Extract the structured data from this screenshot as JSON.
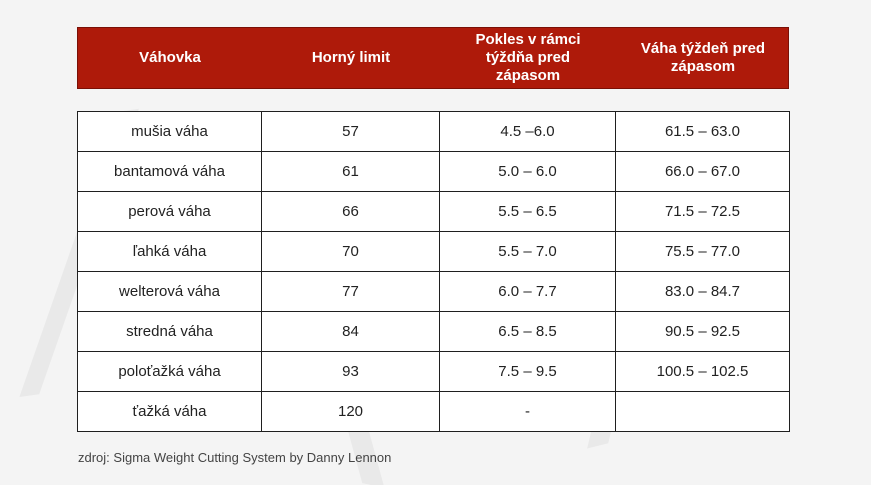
{
  "table": {
    "headers": [
      "Váhovka",
      "Horný limit",
      "Pokles v rámci\ntýždňa pred\nzápasom",
      "Váha týždeň pred\nzápasom"
    ],
    "rows": [
      [
        "mušia váha",
        "57",
        "4.5 –6.0",
        "61.5 – 63.0"
      ],
      [
        "bantamová váha",
        "61",
        "5.0 – 6.0",
        "66.0 – 67.0"
      ],
      [
        "perová váha",
        "66",
        "5.5 – 6.5",
        "71.5 – 72.5"
      ],
      [
        "ľahká váha",
        "70",
        "5.5 – 7.0",
        "75.5 – 77.0"
      ],
      [
        "welterová váha",
        "77",
        "6.0 – 7.7",
        "83.0 – 84.7"
      ],
      [
        "stredná váha",
        "84",
        "6.5 – 8.5",
        "90.5 – 92.5"
      ],
      [
        "poloťažká váha",
        "93",
        "7.5 – 9.5",
        "100.5 – 102.5"
      ],
      [
        "ťažká váha",
        "120",
        "-",
        ""
      ]
    ]
  },
  "source": "zdroj: Sigma Weight Cutting System by Danny Lennon",
  "colors": {
    "header_bg": "#ae1a0a",
    "header_text": "#ffffff",
    "background": "#f4f4f4"
  }
}
